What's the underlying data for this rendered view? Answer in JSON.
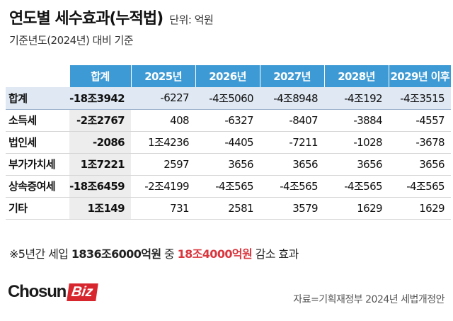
{
  "header": {
    "title": "연도별 세수효과(누적법)",
    "unit": "단위: 억원",
    "subtitle": "기준년도(2024년) 대비 기준"
  },
  "table": {
    "columns": [
      "합계",
      "2025년",
      "2026년",
      "2027년",
      "2028년",
      "2029년 이후"
    ],
    "rows": [
      {
        "label": "합계",
        "total": "-18조3942",
        "values": [
          "-6227",
          "-4조5060",
          "-4조8948",
          "-4조192",
          "-4조3515"
        ]
      },
      {
        "label": "소득세",
        "total": "-2조2767",
        "values": [
          "408",
          "-6327",
          "-8407",
          "-3884",
          "-4557"
        ]
      },
      {
        "label": "법인세",
        "total": "-2086",
        "values": [
          "1조4236",
          "-4405",
          "-7211",
          "-1028",
          "-3678"
        ]
      },
      {
        "label": "부가가치세",
        "total": "1조7221",
        "values": [
          "2597",
          "3656",
          "3656",
          "3656",
          "3656"
        ]
      },
      {
        "label": "상속증여세",
        "total": "-18조6459",
        "values": [
          "-2조4199",
          "-4조565",
          "-4조565",
          "-4조565",
          "-4조565"
        ]
      },
      {
        "label": "기타",
        "total": "1조149",
        "values": [
          "731",
          "2581",
          "3579",
          "1629",
          "1629"
        ]
      }
    ]
  },
  "footnote": {
    "prefix": "※5년간 세입 ",
    "amount": "1836조6000억원",
    "middle": " 중 ",
    "highlight": "18조4000억원",
    "suffix": " 감소 효과"
  },
  "brand": {
    "logo_word": "Chosun",
    "logo_badge": "Biz",
    "accent_color": "#d8262e"
  },
  "source": "자료=기획재정부 2024년 세법개정안",
  "colors": {
    "header_blue": "#3d9ad4",
    "sum_row_bg": "#dfe8f3",
    "total_col_bg": "#ededed",
    "highlight_red": "#d9363e"
  }
}
